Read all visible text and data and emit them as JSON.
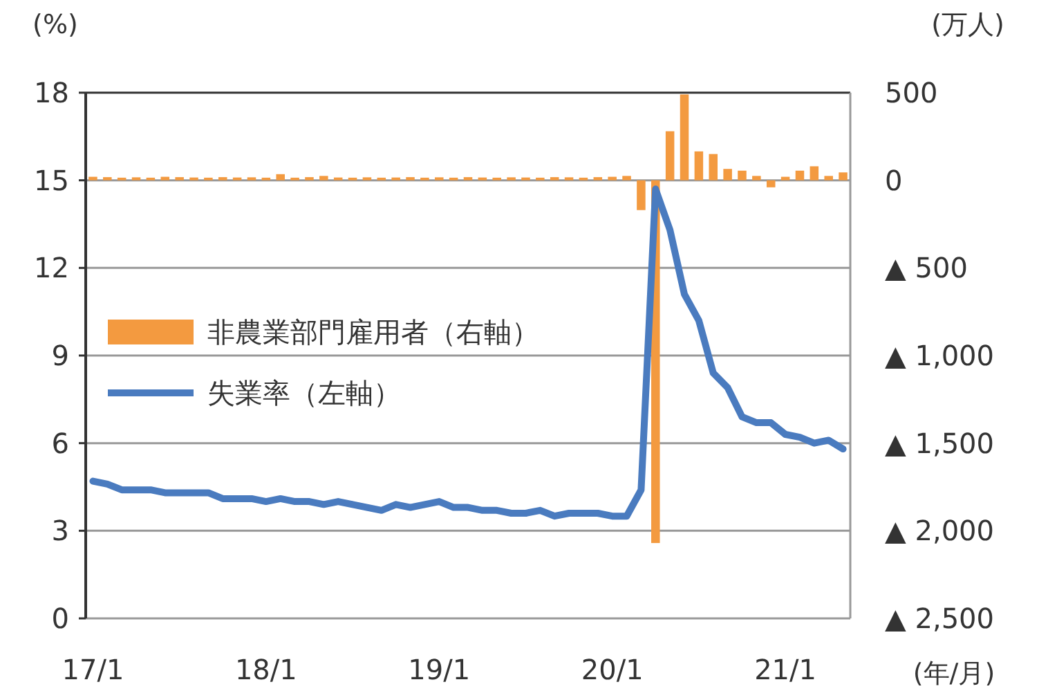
{
  "chart_data": {
    "type": "line",
    "categories": [
      "17/1",
      null,
      null,
      null,
      null,
      null,
      null,
      null,
      null,
      null,
      null,
      null,
      "18/1",
      null,
      null,
      null,
      null,
      null,
      null,
      null,
      null,
      null,
      null,
      null,
      "19/1",
      null,
      null,
      null,
      null,
      null,
      null,
      null,
      null,
      null,
      null,
      null,
      "20/1",
      null,
      null,
      null,
      null,
      null,
      null,
      null,
      null,
      null,
      null,
      null,
      "21/1",
      null,
      null,
      null,
      null
    ],
    "ylabel": "(%)",
    "y2label": "(万人)",
    "xlabel": "(年/月)",
    "ylim": [
      0,
      18
    ],
    "yticks": [
      0,
      3,
      6,
      9,
      12,
      15,
      18
    ],
    "y2lim": [
      -2500,
      500
    ],
    "y2ticks": [
      {
        "value": -2500,
        "label": "▲ 2,500"
      },
      {
        "value": -2000,
        "label": "▲ 2,000"
      },
      {
        "value": -1500,
        "label": "▲ 1,500"
      },
      {
        "value": -1000,
        "label": "▲ 1,000"
      },
      {
        "value": -500,
        "label": "▲ 500"
      },
      0,
      500
    ],
    "grid": "y",
    "legend": "left",
    "series": [
      {
        "name": "非農業部門雇用者（右軸）",
        "type": "bar",
        "axis": "y2",
        "color": "#f39a40",
        "values": [
          20,
          18,
          15,
          17,
          15,
          20,
          18,
          16,
          15,
          18,
          16,
          17,
          15,
          35,
          15,
          18,
          25,
          16,
          15,
          17,
          15,
          16,
          18,
          15,
          17,
          15,
          18,
          16,
          15,
          17,
          16,
          15,
          18,
          17,
          15,
          18,
          20,
          25,
          -170,
          -2070,
          280,
          490,
          165,
          150,
          65,
          55,
          25,
          -40,
          20,
          55,
          80,
          25,
          45
        ]
      },
      {
        "name": "失業率（左軸）",
        "color": "#4a7bbf",
        "values": [
          4.7,
          4.6,
          4.4,
          4.4,
          4.4,
          4.3,
          4.3,
          4.3,
          4.3,
          4.1,
          4.1,
          4.1,
          4.0,
          4.1,
          4.0,
          4.0,
          3.9,
          4.0,
          3.9,
          3.8,
          3.7,
          3.9,
          3.8,
          3.9,
          4.0,
          3.8,
          3.8,
          3.7,
          3.7,
          3.6,
          3.6,
          3.7,
          3.5,
          3.6,
          3.6,
          3.6,
          3.5,
          3.5,
          4.4,
          14.7,
          13.3,
          11.1,
          10.2,
          8.4,
          7.9,
          6.9,
          6.7,
          6.7,
          6.3,
          6.2,
          6.0,
          6.1,
          5.8
        ]
      }
    ]
  }
}
